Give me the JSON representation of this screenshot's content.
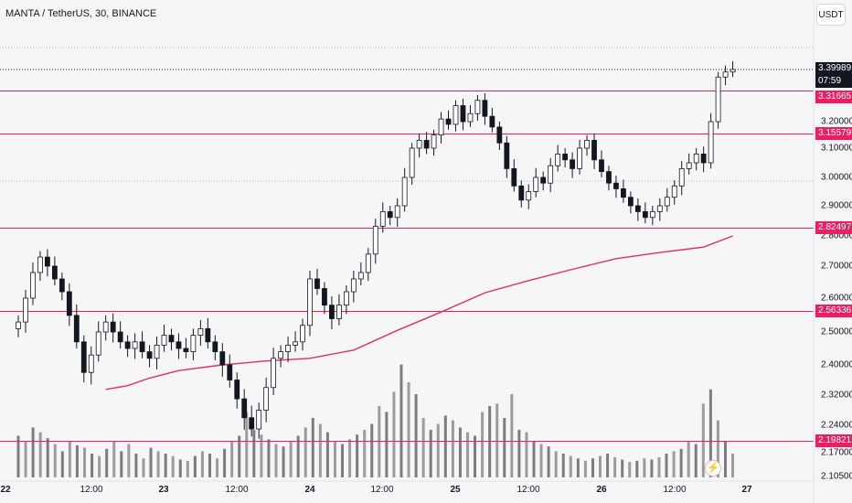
{
  "header": {
    "title": "MANTA / TetherUS, 30, BINANCE",
    "currency_button": "USDT"
  },
  "price_axis": {
    "ticks": [
      "3.20000",
      "3.10000",
      "3.00000",
      "2.90000",
      "2.80000",
      "2.70000",
      "2.60000",
      "2.50000",
      "2.40000",
      "2.32000",
      "2.24000",
      "2.17000",
      "2.10500"
    ],
    "last_price": "3.39989",
    "countdown": "07:59"
  },
  "time_axis": {
    "labels": [
      "22",
      "12:00",
      "23",
      "12:00",
      "24",
      "12:00",
      "25",
      "12:00",
      "26",
      "12:00",
      "27"
    ]
  },
  "colors": {
    "up": "#ffffff",
    "down": "#131722",
    "level_line": "#e91e63",
    "moving_average": "#e0315c",
    "volume": "#7d7d80",
    "background": "#f6f6f7"
  },
  "icons": {
    "alert": "flash-icon"
  },
  "chart_data": {
    "type": "candlestick",
    "title": "MANTA / TetherUS, 30, BINANCE",
    "symbol": "MANTA / TetherUS",
    "interval": "30",
    "exchange": "BINANCE",
    "quote_currency": "USDT",
    "ylim": [
      2.09,
      3.45
    ],
    "grid": false,
    "horizontal_levels": [
      "3.31665",
      "3.15579",
      "2.82497",
      "2.56336",
      "2.19821"
    ],
    "last_price": 3.39989,
    "moving_average": [
      {
        "day": 22.6,
        "value": 2.335
      },
      {
        "day": 22.75,
        "value": 2.345
      },
      {
        "day": 22.9,
        "value": 2.365
      },
      {
        "day": 23.1,
        "value": 2.385
      },
      {
        "day": 23.4,
        "value": 2.4
      },
      {
        "day": 23.7,
        "value": 2.412
      },
      {
        "day": 24.0,
        "value": 2.42
      },
      {
        "day": 24.3,
        "value": 2.445
      },
      {
        "day": 24.6,
        "value": 2.505
      },
      {
        "day": 24.9,
        "value": 2.56
      },
      {
        "day": 25.2,
        "value": 2.617
      },
      {
        "day": 25.5,
        "value": 2.655
      },
      {
        "day": 25.8,
        "value": 2.69
      },
      {
        "day": 26.1,
        "value": 2.725
      },
      {
        "day": 26.4,
        "value": 2.745
      },
      {
        "day": 26.7,
        "value": 2.763
      },
      {
        "day": 26.9,
        "value": 2.8
      }
    ],
    "closes": [
      {
        "day": 22.0,
        "value": 2.53
      },
      {
        "day": 22.05,
        "value": 2.6
      },
      {
        "day": 22.1,
        "value": 2.68
      },
      {
        "day": 22.15,
        "value": 2.73
      },
      {
        "day": 22.2,
        "value": 2.7
      },
      {
        "day": 22.25,
        "value": 2.66
      },
      {
        "day": 22.3,
        "value": 2.62
      },
      {
        "day": 22.35,
        "value": 2.55
      },
      {
        "day": 22.4,
        "value": 2.47
      },
      {
        "day": 22.45,
        "value": 2.38
      },
      {
        "day": 22.5,
        "value": 2.43
      },
      {
        "day": 22.55,
        "value": 2.5
      },
      {
        "day": 22.6,
        "value": 2.53
      },
      {
        "day": 22.65,
        "value": 2.5
      },
      {
        "day": 22.7,
        "value": 2.47
      },
      {
        "day": 22.75,
        "value": 2.45
      },
      {
        "day": 22.8,
        "value": 2.47
      },
      {
        "day": 22.85,
        "value": 2.44
      },
      {
        "day": 22.9,
        "value": 2.42
      },
      {
        "day": 22.95,
        "value": 2.46
      },
      {
        "day": 23.0,
        "value": 2.49
      },
      {
        "day": 23.05,
        "value": 2.47
      },
      {
        "day": 23.1,
        "value": 2.45
      },
      {
        "day": 23.15,
        "value": 2.44
      },
      {
        "day": 23.2,
        "value": 2.49
      },
      {
        "day": 23.25,
        "value": 2.51
      },
      {
        "day": 23.3,
        "value": 2.47
      },
      {
        "day": 23.35,
        "value": 2.44
      },
      {
        "day": 23.4,
        "value": 2.4
      },
      {
        "day": 23.45,
        "value": 2.36
      },
      {
        "day": 23.5,
        "value": 2.31
      },
      {
        "day": 23.55,
        "value": 2.26
      },
      {
        "day": 23.6,
        "value": 2.23
      },
      {
        "day": 23.65,
        "value": 2.28
      },
      {
        "day": 23.7,
        "value": 2.34
      },
      {
        "day": 23.75,
        "value": 2.42
      },
      {
        "day": 23.8,
        "value": 2.44
      },
      {
        "day": 23.85,
        "value": 2.46
      },
      {
        "day": 23.9,
        "value": 2.47
      },
      {
        "day": 23.95,
        "value": 2.52
      },
      {
        "day": 24.0,
        "value": 2.66
      },
      {
        "day": 24.05,
        "value": 2.63
      },
      {
        "day": 24.1,
        "value": 2.58
      },
      {
        "day": 24.15,
        "value": 2.54
      },
      {
        "day": 24.2,
        "value": 2.58
      },
      {
        "day": 24.25,
        "value": 2.62
      },
      {
        "day": 24.3,
        "value": 2.66
      },
      {
        "day": 24.35,
        "value": 2.68
      },
      {
        "day": 24.4,
        "value": 2.74
      },
      {
        "day": 24.45,
        "value": 2.83
      },
      {
        "day": 24.5,
        "value": 2.88
      },
      {
        "day": 24.55,
        "value": 2.86
      },
      {
        "day": 24.6,
        "value": 2.9
      },
      {
        "day": 24.65,
        "value": 3.0
      },
      {
        "day": 24.7,
        "value": 3.1
      },
      {
        "day": 24.75,
        "value": 3.13
      },
      {
        "day": 24.8,
        "value": 3.1
      },
      {
        "day": 24.85,
        "value": 3.15
      },
      {
        "day": 24.9,
        "value": 3.21
      },
      {
        "day": 24.95,
        "value": 3.19
      },
      {
        "day": 25.0,
        "value": 3.26
      },
      {
        "day": 25.05,
        "value": 3.2
      },
      {
        "day": 25.1,
        "value": 3.23
      },
      {
        "day": 25.15,
        "value": 3.28
      },
      {
        "day": 25.2,
        "value": 3.22
      },
      {
        "day": 25.25,
        "value": 3.18
      },
      {
        "day": 25.3,
        "value": 3.12
      },
      {
        "day": 25.35,
        "value": 3.03
      },
      {
        "day": 25.4,
        "value": 2.97
      },
      {
        "day": 25.45,
        "value": 2.92
      },
      {
        "day": 25.5,
        "value": 2.95
      },
      {
        "day": 25.55,
        "value": 3.0
      },
      {
        "day": 25.6,
        "value": 2.98
      },
      {
        "day": 25.65,
        "value": 3.04
      },
      {
        "day": 25.7,
        "value": 3.08
      },
      {
        "day": 25.75,
        "value": 3.06
      },
      {
        "day": 25.8,
        "value": 3.03
      },
      {
        "day": 25.85,
        "value": 3.1
      },
      {
        "day": 25.9,
        "value": 3.13
      },
      {
        "day": 25.95,
        "value": 3.06
      },
      {
        "day": 26.0,
        "value": 3.02
      },
      {
        "day": 26.05,
        "value": 2.98
      },
      {
        "day": 26.1,
        "value": 2.96
      },
      {
        "day": 26.15,
        "value": 2.93
      },
      {
        "day": 26.2,
        "value": 2.9
      },
      {
        "day": 26.25,
        "value": 2.88
      },
      {
        "day": 26.3,
        "value": 2.86
      },
      {
        "day": 26.35,
        "value": 2.88
      },
      {
        "day": 26.4,
        "value": 2.9
      },
      {
        "day": 26.45,
        "value": 2.93
      },
      {
        "day": 26.5,
        "value": 2.97
      },
      {
        "day": 26.55,
        "value": 3.03
      },
      {
        "day": 26.6,
        "value": 3.05
      },
      {
        "day": 26.65,
        "value": 3.08
      },
      {
        "day": 26.7,
        "value": 3.05
      },
      {
        "day": 26.75,
        "value": 3.2
      },
      {
        "day": 26.8,
        "value": 3.37
      },
      {
        "day": 26.85,
        "value": 3.39
      },
      {
        "day": 26.9,
        "value": 3.4
      }
    ],
    "volume": {
      "scale": "relative, unlabeled",
      "values": [
        0.35,
        0.3,
        0.42,
        0.38,
        0.33,
        0.28,
        0.22,
        0.3,
        0.27,
        0.25,
        0.2,
        0.18,
        0.24,
        0.3,
        0.22,
        0.28,
        0.2,
        0.16,
        0.25,
        0.22,
        0.2,
        0.18,
        0.15,
        0.14,
        0.18,
        0.22,
        0.2,
        0.16,
        0.24,
        0.3,
        0.35,
        0.55,
        0.4,
        0.36,
        0.32,
        0.28,
        0.26,
        0.3,
        0.35,
        0.42,
        0.5,
        0.45,
        0.38,
        0.3,
        0.28,
        0.32,
        0.36,
        0.4,
        0.45,
        0.6,
        0.55,
        0.72,
        0.95,
        0.8,
        0.7,
        0.5,
        0.4,
        0.45,
        0.52,
        0.48,
        0.42,
        0.38,
        0.35,
        0.55,
        0.6,
        0.62,
        0.5,
        0.7,
        0.4,
        0.38,
        0.3,
        0.28,
        0.26,
        0.22,
        0.2,
        0.18,
        0.16,
        0.14,
        0.16,
        0.18,
        0.2,
        0.17,
        0.15,
        0.13,
        0.14,
        0.16,
        0.15,
        0.17,
        0.2,
        0.22,
        0.24,
        0.3,
        0.28,
        0.62,
        0.74,
        0.48,
        0.3,
        0.2
      ]
    }
  }
}
